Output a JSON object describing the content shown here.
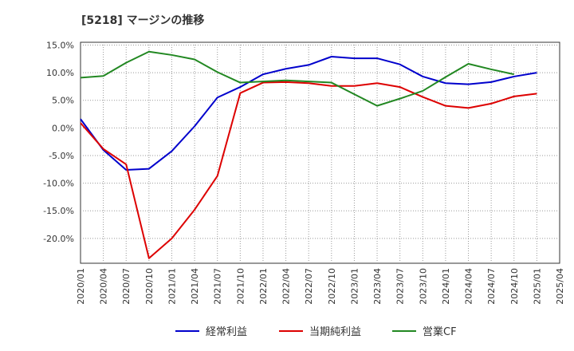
{
  "chart_data": {
    "type": "line",
    "title": "[5218]  マージンの推移",
    "xlabel": "",
    "ylabel": "",
    "x": [
      "2020/01",
      "2020/04",
      "2020/07",
      "2020/10",
      "2021/01",
      "2021/04",
      "2021/07",
      "2021/10",
      "2022/01",
      "2022/04",
      "2022/07",
      "2022/10",
      "2023/01",
      "2023/04",
      "2023/07",
      "2023/10",
      "2024/01",
      "2024/04",
      "2024/07",
      "2024/10",
      "2025/01",
      "2025/04"
    ],
    "ylim": [
      -24.5,
      15.5
    ],
    "yticks": [
      15,
      10,
      5,
      0,
      -5,
      -10,
      -15,
      -20
    ],
    "ytick_labels": [
      "15.0%",
      "10.0%",
      "5.0%",
      "0.0%",
      "-5.0%",
      "-10.0%",
      "-15.0%",
      "-20.0%"
    ],
    "grid": true,
    "legend_position": "bottom",
    "series": [
      {
        "name": "経常利益",
        "color": "#0000cc",
        "values": [
          1.6,
          -4.0,
          -7.6,
          -7.4,
          -4.2,
          0.3,
          5.5,
          7.4,
          9.7,
          10.7,
          11.4,
          12.9,
          12.6,
          12.6,
          11.5,
          9.3,
          8.1,
          7.9,
          8.3,
          9.3,
          10.0,
          null
        ]
      },
      {
        "name": "当期純利益",
        "color": "#dd0000",
        "values": [
          0.9,
          -3.8,
          -6.6,
          -23.6,
          -20.0,
          -14.8,
          -8.7,
          6.3,
          8.2,
          8.3,
          8.1,
          7.6,
          7.6,
          8.1,
          7.4,
          5.6,
          4.0,
          3.6,
          4.4,
          5.7,
          6.2,
          null
        ]
      },
      {
        "name": "営業CF",
        "color": "#228822",
        "values": [
          9.1,
          9.4,
          11.8,
          13.8,
          13.2,
          12.4,
          10.1,
          8.2,
          8.4,
          8.6,
          8.4,
          8.2,
          6.1,
          4.0,
          5.3,
          6.7,
          9.2,
          11.6,
          10.6,
          9.7,
          null,
          null
        ]
      }
    ]
  }
}
